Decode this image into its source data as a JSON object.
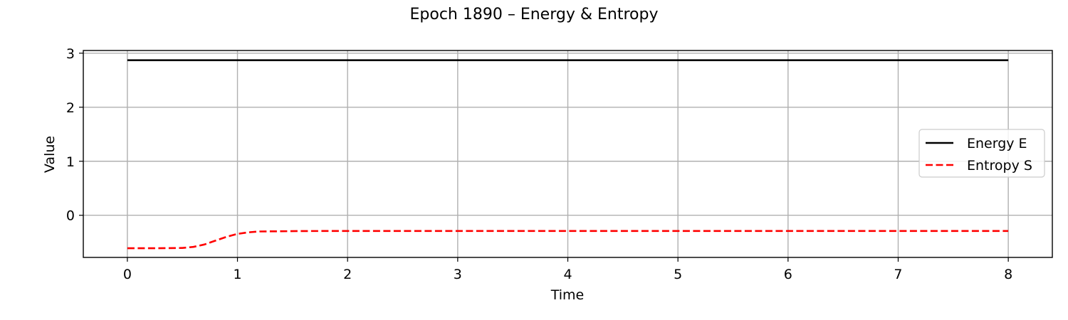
{
  "chart_data": {
    "type": "line",
    "title": "Epoch 1890 – Energy & Entropy",
    "xlabel": "Time",
    "ylabel": "Value",
    "xlim": [
      -0.4,
      8.4
    ],
    "ylim": [
      -0.78,
      3.05
    ],
    "xticks": [
      0,
      1,
      2,
      3,
      4,
      5,
      6,
      7,
      8
    ],
    "yticks": [
      0,
      1,
      2,
      3
    ],
    "grid": true,
    "legend_position": "center-right",
    "series": [
      {
        "name": "Energy E",
        "color": "#000000",
        "style": "solid",
        "x": [
          0,
          8
        ],
        "y": [
          2.87,
          2.87
        ]
      },
      {
        "name": "Entropy S",
        "color": "#ff0000",
        "style": "dashed",
        "x": [
          0,
          0.25,
          0.5,
          0.6,
          0.7,
          0.8,
          0.9,
          1.0,
          1.1,
          1.2,
          1.4,
          1.6,
          2,
          3,
          4,
          5,
          6,
          7,
          8
        ],
        "y": [
          -0.61,
          -0.61,
          -0.605,
          -0.585,
          -0.54,
          -0.47,
          -0.4,
          -0.345,
          -0.315,
          -0.3,
          -0.295,
          -0.292,
          -0.29,
          -0.29,
          -0.29,
          -0.29,
          -0.29,
          -0.29,
          -0.29
        ]
      }
    ]
  }
}
